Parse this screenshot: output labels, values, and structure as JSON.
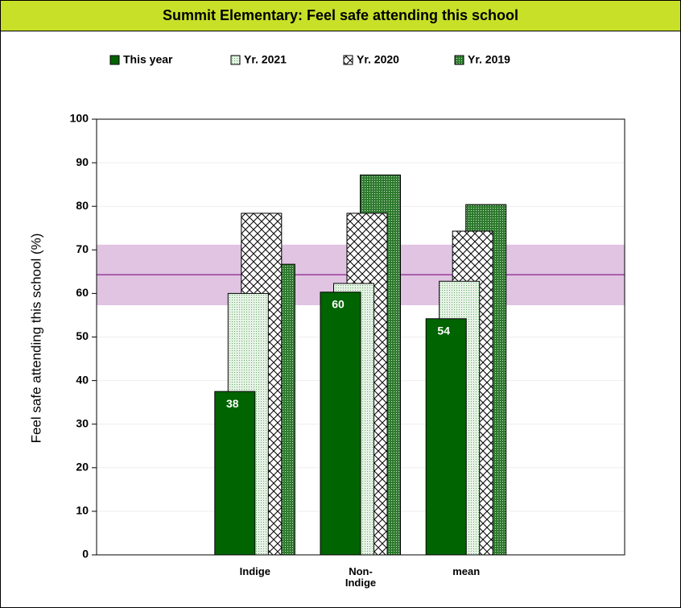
{
  "chart_data": {
    "type": "bar",
    "title": "Summit Elementary: Feel safe attending this school",
    "y_label": "Feel safe attending this school (%)",
    "categories": [
      "Indige",
      "Non-\nIndige",
      "mean"
    ],
    "series": [
      {
        "name": "This year",
        "color": "#006400",
        "pattern": "solid",
        "values": [
          37.5,
          60.3,
          54.2
        ],
        "value_labels": [
          "38",
          "60",
          "54"
        ]
      },
      {
        "name": "Yr. 2021",
        "color": "#6aaa6a",
        "pattern": "dots",
        "values": [
          60,
          62.3,
          62.8
        ]
      },
      {
        "name": "Yr. 2020",
        "color": "#000000",
        "pattern": "crosshatch",
        "values": [
          78.4,
          78.4,
          74.3
        ]
      },
      {
        "name": "Yr. 2019",
        "color": "#2f7a2f",
        "pattern": "dense-dots",
        "values": [
          66.7,
          87.2,
          80.4
        ]
      }
    ],
    "reference_band": [
      57.3,
      71.2
    ],
    "reference_line": 64.3,
    "band_color": "#e0c4e2",
    "line_color": "#8b1f8b",
    "ylim": [
      0,
      100
    ],
    "yticks": [
      0,
      10,
      20,
      30,
      40,
      50,
      60,
      70,
      80,
      90,
      100
    ],
    "grid": true
  }
}
